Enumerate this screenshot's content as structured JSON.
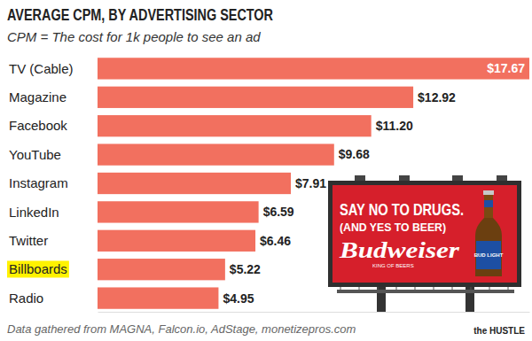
{
  "chart_data": {
    "type": "bar",
    "title": "AVERAGE CPM, BY ADVERTISING SECTOR",
    "subtitle": "CPM = The cost for 1k people to see an ad",
    "categories": [
      "TV (Cable)",
      "Magazine",
      "Facebook",
      "YouTube",
      "Instagram",
      "LinkedIn",
      "Twitter",
      "Billboards",
      "Radio"
    ],
    "values": [
      17.67,
      12.92,
      11.2,
      9.68,
      7.91,
      6.59,
      6.46,
      5.22,
      4.95
    ],
    "value_labels": [
      "$17.67",
      "$12.92",
      "$11.20",
      "$9.68",
      "$7.91",
      "$6.59",
      "$6.46",
      "$5.22",
      "$4.95"
    ],
    "color": "#f2705f",
    "orientation": "horizontal",
    "data_labels": true,
    "tick_labels": "y",
    "xlim": [
      0,
      17.67
    ],
    "source": "Data gathered from MAGNA, Falcon.io, AdStage, monetizepros.com",
    "credit": "the HUSTLE",
    "annotations": [
      "SAY NO TO DRUGS.",
      "(AND YES TO BEER)",
      "Budweiser",
      "KING OF BEERS",
      "BUD LIGHT"
    ]
  }
}
